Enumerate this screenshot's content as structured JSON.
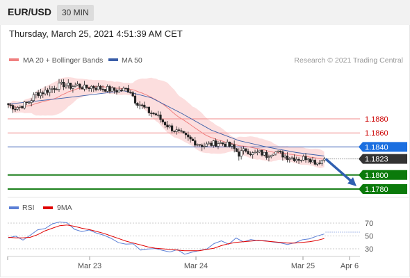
{
  "header": {
    "symbol": "EUR/USD",
    "timeframe": "30 MIN"
  },
  "datetime": "Thursday, March 25, 2021 4:51:39 AM CET",
  "legend": {
    "ma20": {
      "label": "MA 20 + Bollinger Bands",
      "color": "#f08080"
    },
    "ma50": {
      "label": "MA 50",
      "color": "#3a5ea8"
    },
    "credit": "Research © 2021 Trading Central"
  },
  "rsi_legend": {
    "rsi": {
      "label": "RSI",
      "color": "#5b7fd6"
    },
    "ma": {
      "label": "9MA",
      "color": "#e00000"
    }
  },
  "chart_data": {
    "type": "candlestick",
    "instrument": "EUR/USD",
    "interval": "30 MIN",
    "ylim": [
      1.177,
      1.1955
    ],
    "x_ticks": [
      "Mar 23",
      "Mar 24",
      "Mar 25",
      "Apr 6"
    ],
    "last_price": 1.1823,
    "levels": [
      {
        "value": 1.188,
        "label": "1.1880",
        "kind": "resistance"
      },
      {
        "value": 1.186,
        "label": "1.1860",
        "kind": "resistance"
      },
      {
        "value": 1.184,
        "label": "1.1840",
        "kind": "pivot"
      },
      {
        "value": 1.1823,
        "label": "1.1823",
        "kind": "last"
      },
      {
        "value": 1.18,
        "label": "1.1800",
        "kind": "support"
      },
      {
        "value": 1.178,
        "label": "1.1780",
        "kind": "support"
      }
    ],
    "price_path": [
      [
        0,
        1.19
      ],
      [
        3,
        1.1896
      ],
      [
        6,
        1.1899
      ],
      [
        9,
        1.1904
      ],
      [
        12,
        1.1916
      ],
      [
        15,
        1.1918
      ],
      [
        18,
        1.1922
      ],
      [
        21,
        1.1926
      ],
      [
        24,
        1.1929
      ],
      [
        27,
        1.1926
      ],
      [
        30,
        1.1928
      ],
      [
        33,
        1.1924
      ],
      [
        36,
        1.1926
      ],
      [
        39,
        1.1924
      ],
      [
        42,
        1.1923
      ],
      [
        45,
        1.1921
      ],
      [
        48,
        1.192
      ],
      [
        51,
        1.1922
      ],
      [
        53,
        1.192
      ],
      [
        55,
        1.1906
      ],
      [
        58,
        1.1898
      ],
      [
        61,
        1.189
      ],
      [
        64,
        1.1886
      ],
      [
        67,
        1.1876
      ],
      [
        70,
        1.1868
      ],
      [
        73,
        1.1862
      ],
      [
        76,
        1.1856
      ],
      [
        79,
        1.185
      ],
      [
        82,
        1.1845
      ],
      [
        85,
        1.1842
      ],
      [
        88,
        1.1844
      ],
      [
        91,
        1.1846
      ],
      [
        94,
        1.1844
      ],
      [
        97,
        1.184
      ],
      [
        100,
        1.183
      ],
      [
        103,
        1.1836
      ],
      [
        106,
        1.183
      ],
      [
        109,
        1.1832
      ],
      [
        112,
        1.1828
      ],
      [
        115,
        1.1834
      ],
      [
        118,
        1.183
      ],
      [
        121,
        1.1826
      ],
      [
        124,
        1.1824
      ],
      [
        127,
        1.1823
      ],
      [
        130,
        1.1826
      ],
      [
        132,
        1.182
      ],
      [
        134,
        1.1818
      ],
      [
        137,
        1.1823
      ]
    ],
    "ma50_path": [
      [
        0,
        1.1901
      ],
      [
        25,
        1.191
      ],
      [
        50,
        1.192
      ],
      [
        62,
        1.191
      ],
      [
        75,
        1.1888
      ],
      [
        88,
        1.1864
      ],
      [
        100,
        1.1849
      ],
      [
        112,
        1.184
      ],
      [
        125,
        1.1832
      ],
      [
        137,
        1.1827
      ]
    ],
    "forecast": {
      "from": 1.1823,
      "to": 1.178
    },
    "rsi": {
      "ylim": [
        15,
        80
      ],
      "ticks": [
        70,
        50,
        30
      ],
      "rsi_values": [
        50,
        48,
        44,
        50,
        58,
        64,
        66,
        70,
        68,
        62,
        58,
        60,
        52,
        50,
        44,
        40,
        38,
        36,
        30,
        28,
        30,
        27,
        26,
        28,
        24,
        25,
        28,
        32,
        38,
        44,
        40,
        44,
        40,
        46,
        44,
        40,
        42,
        38,
        36,
        40,
        42,
        48,
        52,
        56
      ],
      "ma_values": [
        48,
        47,
        47,
        48,
        52,
        58,
        62,
        66,
        67,
        65,
        62,
        60,
        57,
        54,
        50,
        46,
        42,
        39,
        36,
        33,
        31,
        30,
        29,
        28,
        27,
        27,
        27,
        29,
        31,
        35,
        38,
        40,
        41,
        42,
        43,
        42,
        41,
        40,
        39,
        39,
        40,
        41,
        43,
        46
      ]
    }
  }
}
